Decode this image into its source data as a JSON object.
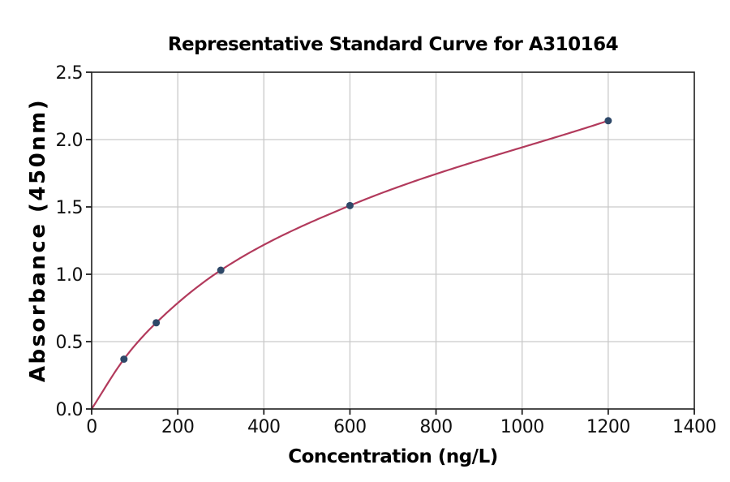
{
  "title": "Representative Standard Curve for A310164",
  "chart_data": {
    "type": "scatter",
    "title": "Representative Standard Curve for A310164",
    "xlabel": "Concentration (ng/L)",
    "ylabel": "Absorbance (450nm)",
    "xlim": [
      0,
      1400
    ],
    "ylim": [
      0,
      2.5
    ],
    "x_ticks": [
      0,
      200,
      400,
      600,
      800,
      1000,
      1200,
      1400
    ],
    "y_ticks": [
      0.0,
      0.5,
      1.0,
      1.5,
      2.0,
      2.5
    ],
    "y_tick_decimals": 1,
    "grid": true,
    "legend": false,
    "series": [
      {
        "name": "standard-points",
        "type": "scatter",
        "x": [
          75,
          150,
          300,
          600,
          1200
        ],
        "y": [
          0.37,
          0.64,
          1.03,
          1.51,
          2.14
        ]
      },
      {
        "name": "fitted-curve",
        "type": "line",
        "smooth": true,
        "x": [
          0,
          75,
          150,
          300,
          600,
          1200
        ],
        "y": [
          0.0,
          0.37,
          0.64,
          1.03,
          1.51,
          2.14
        ]
      }
    ],
    "colors": {
      "curve": "#b23a5c",
      "marker": "#2e4868",
      "grid": "#c9c9c9",
      "spine": "#1f1f1f",
      "text": "#000000",
      "background": "#ffffff"
    }
  }
}
